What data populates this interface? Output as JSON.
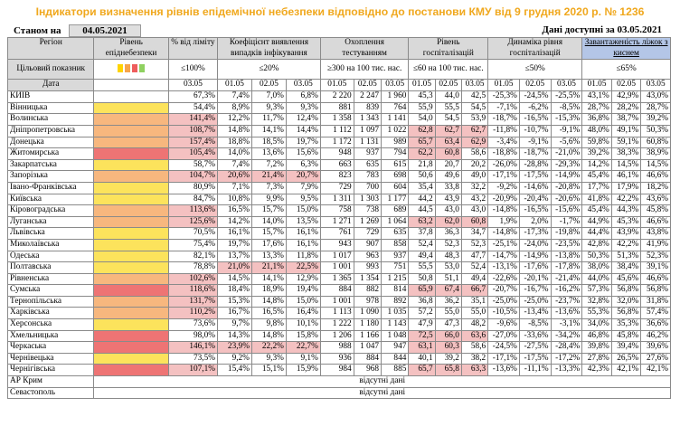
{
  "title": "Індикатори визначення рівнів епідемічної небезпеки відповідно до постанови КМУ від 9 грудня 2020 р. № 1236",
  "status_label": "Станом на",
  "status_date": "04.05.2021",
  "data_available": "Дані доступні за 03.05.2021",
  "headers": {
    "region": "Регіон",
    "level": "Рівень епіднебезпеки",
    "pct": "% від ліміту",
    "coef": "Коефіцієнт виявлення випадків інфікування",
    "tests": "Охоплення тестуванням",
    "hosp": "Рівень госпіталізацій",
    "dyn": "Динаміка рівня госпіталізацій",
    "oxy": "Завантаженість ліжок з киснем",
    "target": "Цільовий показник",
    "date_label": "Дата",
    "t_pct": "≤100%",
    "t_coef": "≤20%",
    "t_tests": "≥300 на 100 тис. нас.",
    "t_hosp": "≤60 на 100 тис. нас.",
    "t_dyn": "≤50%",
    "t_oxy": "≤65%",
    "d_pct": "03.05",
    "dates": [
      "01.05",
      "02.05",
      "03.05"
    ]
  },
  "colors": {
    "yellow": "#fce35c",
    "orange": "#f7b77e",
    "red": "#ee7474",
    "pink": "#f4c1c1",
    "swatches": [
      "#ffd400",
      "#f7a54b",
      "#ee5d5d",
      "#8fd160"
    ]
  },
  "absent_text": "відсутні дані",
  "rows": [
    {
      "name": "КИЇВ",
      "lvl": "w",
      "pct": "67,3%",
      "pb": "",
      "coef": [
        "7,4%",
        "7,0%",
        "6,8%"
      ],
      "tests": [
        "2 220",
        "2 247",
        "1 960"
      ],
      "hosp": [
        "45,3",
        "44,0",
        "42,5"
      ],
      "hp": "",
      "dyn": [
        "-25,3%",
        "-24,5%",
        "-25,5%"
      ],
      "oxy": [
        "43,1%",
        "42,9%",
        "43,0%"
      ]
    },
    {
      "name": "Вінницька",
      "lvl": "y",
      "pct": "54,4%",
      "pb": "",
      "coef": [
        "8,9%",
        "9,3%",
        "9,3%"
      ],
      "tests": [
        "881",
        "839",
        "764"
      ],
      "hosp": [
        "55,9",
        "55,5",
        "54,5"
      ],
      "hp": "",
      "dyn": [
        "-7,1%",
        "-6,2%",
        "-8,5%"
      ],
      "oxy": [
        "28,7%",
        "28,2%",
        "28,7%"
      ]
    },
    {
      "name": "Волинська",
      "lvl": "o",
      "pct": "141,4%",
      "pb": "r",
      "coef": [
        "12,2%",
        "11,7%",
        "12,4%"
      ],
      "tests": [
        "1 358",
        "1 343",
        "1 141"
      ],
      "hosp": [
        "54,0",
        "54,5",
        "53,9"
      ],
      "hp": "",
      "dyn": [
        "-18,7%",
        "-16,5%",
        "-15,3%"
      ],
      "oxy": [
        "36,8%",
        "38,7%",
        "39,2%"
      ]
    },
    {
      "name": "Дніпропетровська",
      "lvl": "o",
      "pct": "108,7%",
      "pb": "r",
      "coef": [
        "14,8%",
        "14,1%",
        "14,4%"
      ],
      "tests": [
        "1 112",
        "1 097",
        "1 022"
      ],
      "hosp": [
        "62,8",
        "62,7",
        "62,7"
      ],
      "hp": "p",
      "dyn": [
        "-11,8%",
        "-10,7%",
        "-9,1%"
      ],
      "oxy": [
        "48,0%",
        "49,1%",
        "50,3%"
      ]
    },
    {
      "name": "Донецька",
      "lvl": "o",
      "pct": "157,4%",
      "pb": "r",
      "coef": [
        "18,8%",
        "18,5%",
        "19,7%"
      ],
      "tests": [
        "1 172",
        "1 131",
        "989"
      ],
      "hosp": [
        "65,7",
        "63,4",
        "62,9"
      ],
      "hp": "p",
      "dyn": [
        "-3,4%",
        "-9,1%",
        "-5,6%"
      ],
      "oxy": [
        "59,8%",
        "59,1%",
        "60,8%"
      ]
    },
    {
      "name": "Житомирська",
      "lvl": "r",
      "pct": "105,4%",
      "pb": "r",
      "coef": [
        "14,0%",
        "13,6%",
        "15,6%"
      ],
      "tests": [
        "948",
        "937",
        "794"
      ],
      "hosp": [
        "62,2",
        "60,8",
        "58,6"
      ],
      "hp": "p2",
      "dyn": [
        "-18,8%",
        "-18,7%",
        "-21,0%"
      ],
      "oxy": [
        "39,2%",
        "38,3%",
        "38,9%"
      ]
    },
    {
      "name": "Закарпатська",
      "lvl": "y",
      "pct": "58,7%",
      "pb": "",
      "coef": [
        "7,4%",
        "7,2%",
        "6,3%"
      ],
      "tests": [
        "663",
        "635",
        "615"
      ],
      "hosp": [
        "21,8",
        "20,7",
        "20,2"
      ],
      "hp": "",
      "dyn": [
        "-26,0%",
        "-28,8%",
        "-29,3%"
      ],
      "oxy": [
        "14,2%",
        "14,5%",
        "14,5%"
      ]
    },
    {
      "name": "Запорізька",
      "lvl": "o",
      "pct": "104,7%",
      "pb": "r",
      "coef": [
        "20,6%",
        "21,4%",
        "20,7%"
      ],
      "cb": "p",
      "tests": [
        "823",
        "783",
        "698"
      ],
      "hosp": [
        "50,6",
        "49,6",
        "49,0"
      ],
      "hp": "",
      "dyn": [
        "-17,1%",
        "-17,5%",
        "-14,9%"
      ],
      "oxy": [
        "45,4%",
        "46,1%",
        "46,6%"
      ]
    },
    {
      "name": "Івано-Франківська",
      "lvl": "y",
      "pct": "80,9%",
      "pb": "",
      "coef": [
        "7,1%",
        "7,3%",
        "7,9%"
      ],
      "tests": [
        "729",
        "700",
        "604"
      ],
      "hosp": [
        "35,4",
        "33,8",
        "32,2"
      ],
      "hp": "",
      "dyn": [
        "-9,2%",
        "-14,6%",
        "-20,8%"
      ],
      "oxy": [
        "17,7%",
        "17,9%",
        "18,2%"
      ]
    },
    {
      "name": "Київська",
      "lvl": "y",
      "pct": "84,7%",
      "pb": "",
      "coef": [
        "10,8%",
        "9,9%",
        "9,5%"
      ],
      "tests": [
        "1 311",
        "1 303",
        "1 177"
      ],
      "hosp": [
        "44,2",
        "43,9",
        "43,2"
      ],
      "hp": "",
      "dyn": [
        "-20,9%",
        "-20,4%",
        "-20,6%"
      ],
      "oxy": [
        "41,8%",
        "42,2%",
        "43,6%"
      ]
    },
    {
      "name": "Кіровоградська",
      "lvl": "o",
      "pct": "113,6%",
      "pb": "r",
      "coef": [
        "16,5%",
        "15,7%",
        "15,0%"
      ],
      "tests": [
        "758",
        "738",
        "689"
      ],
      "hosp": [
        "44,5",
        "43,0",
        "43,0"
      ],
      "hp": "",
      "dyn": [
        "-14,8%",
        "-16,5%",
        "-15,6%"
      ],
      "oxy": [
        "45,4%",
        "44,3%",
        "45,8%"
      ]
    },
    {
      "name": "Луганська",
      "lvl": "o",
      "pct": "125,6%",
      "pb": "r",
      "coef": [
        "14,2%",
        "14,0%",
        "13,5%"
      ],
      "tests": [
        "1 271",
        "1 269",
        "1 064"
      ],
      "hosp": [
        "63,2",
        "62,0",
        "60,8"
      ],
      "hp": "p",
      "dyn": [
        "1,9%",
        "2,0%",
        "-1,7%"
      ],
      "oxy": [
        "44,9%",
        "45,3%",
        "46,6%"
      ]
    },
    {
      "name": "Львівська",
      "lvl": "y",
      "pct": "70,5%",
      "pb": "",
      "coef": [
        "16,1%",
        "15,7%",
        "16,1%"
      ],
      "tests": [
        "761",
        "729",
        "635"
      ],
      "hosp": [
        "37,8",
        "36,3",
        "34,7"
      ],
      "hp": "",
      "dyn": [
        "-14,8%",
        "-17,3%",
        "-19,8%"
      ],
      "oxy": [
        "44,4%",
        "43,9%",
        "43,8%"
      ]
    },
    {
      "name": "Миколаївська",
      "lvl": "y",
      "pct": "75,4%",
      "pb": "",
      "coef": [
        "19,7%",
        "17,6%",
        "16,1%"
      ],
      "tests": [
        "943",
        "907",
        "858"
      ],
      "hosp": [
        "52,4",
        "52,3",
        "52,3"
      ],
      "hp": "",
      "dyn": [
        "-25,1%",
        "-24,0%",
        "-23,5%"
      ],
      "oxy": [
        "42,8%",
        "42,2%",
        "41,9%"
      ]
    },
    {
      "name": "Одеська",
      "lvl": "y",
      "pct": "82,1%",
      "pb": "",
      "coef": [
        "13,7%",
        "13,3%",
        "11,8%"
      ],
      "tests": [
        "1 017",
        "963",
        "937"
      ],
      "hosp": [
        "49,4",
        "48,3",
        "47,7"
      ],
      "hp": "",
      "dyn": [
        "-14,7%",
        "-14,9%",
        "-13,8%"
      ],
      "oxy": [
        "50,3%",
        "51,3%",
        "52,3%"
      ]
    },
    {
      "name": "Полтавська",
      "lvl": "y",
      "pct": "78,8%",
      "pb": "",
      "coef": [
        "21,0%",
        "21,1%",
        "22,5%"
      ],
      "cb": "p",
      "tests": [
        "1 001",
        "993",
        "751"
      ],
      "hosp": [
        "55,5",
        "53,0",
        "52,4"
      ],
      "hp": "",
      "dyn": [
        "-13,1%",
        "-17,6%",
        "-17,8%"
      ],
      "oxy": [
        "38,0%",
        "38,4%",
        "39,1%"
      ]
    },
    {
      "name": "Рівненська",
      "lvl": "o",
      "pct": "102,6%",
      "pb": "r",
      "coef": [
        "14,5%",
        "14,1%",
        "12,9%"
      ],
      "tests": [
        "1 365",
        "1 354",
        "1 215"
      ],
      "hosp": [
        "50,8",
        "51,1",
        "49,4"
      ],
      "hp": "",
      "dyn": [
        "-22,6%",
        "-20,1%",
        "-21,4%"
      ],
      "oxy": [
        "44,0%",
        "45,6%",
        "46,6%"
      ]
    },
    {
      "name": "Сумська",
      "lvl": "r",
      "pct": "118,6%",
      "pb": "r",
      "coef": [
        "18,4%",
        "18,9%",
        "19,4%"
      ],
      "tests": [
        "884",
        "882",
        "814"
      ],
      "hosp": [
        "65,9",
        "67,4",
        "66,7"
      ],
      "hp": "p",
      "dyn": [
        "-20,7%",
        "-16,7%",
        "-16,2%"
      ],
      "oxy": [
        "57,3%",
        "56,8%",
        "56,8%"
      ]
    },
    {
      "name": "Тернопільська",
      "lvl": "o",
      "pct": "131,7%",
      "pb": "r",
      "coef": [
        "15,3%",
        "14,8%",
        "15,0%"
      ],
      "tests": [
        "1 001",
        "978",
        "892"
      ],
      "hosp": [
        "36,8",
        "36,2",
        "35,1"
      ],
      "hp": "",
      "dyn": [
        "-25,0%",
        "-25,0%",
        "-23,7%"
      ],
      "oxy": [
        "32,8%",
        "32,0%",
        "31,8%"
      ]
    },
    {
      "name": "Харківська",
      "lvl": "o",
      "pct": "110,2%",
      "pb": "r",
      "coef": [
        "16,7%",
        "16,5%",
        "16,4%"
      ],
      "tests": [
        "1 113",
        "1 090",
        "1 035"
      ],
      "hosp": [
        "57,2",
        "55,0",
        "55,0"
      ],
      "hp": "",
      "dyn": [
        "-10,5%",
        "-13,4%",
        "-13,6%"
      ],
      "oxy": [
        "55,3%",
        "56,8%",
        "57,4%"
      ]
    },
    {
      "name": "Херсонська",
      "lvl": "y",
      "pct": "73,6%",
      "pb": "",
      "coef": [
        "9,7%",
        "9,8%",
        "10,1%"
      ],
      "tests": [
        "1 222",
        "1 180",
        "1 143"
      ],
      "hosp": [
        "47,9",
        "47,3",
        "48,2"
      ],
      "hp": "",
      "dyn": [
        "-9,6%",
        "-8,5%",
        "-3,1%"
      ],
      "oxy": [
        "34,0%",
        "35,3%",
        "36,6%"
      ]
    },
    {
      "name": "Хмельницька",
      "lvl": "r",
      "pct": "98,0%",
      "pb": "",
      "coef": [
        "14,3%",
        "14,8%",
        "15,8%"
      ],
      "tests": [
        "1 206",
        "1 166",
        "1 048"
      ],
      "hosp": [
        "72,5",
        "66,0",
        "63,6"
      ],
      "hp": "p",
      "dyn": [
        "-27,0%",
        "-33,6%",
        "-34,2%"
      ],
      "oxy": [
        "46,8%",
        "45,8%",
        "46,2%"
      ]
    },
    {
      "name": "Черкаська",
      "lvl": "r",
      "pct": "146,1%",
      "pb": "r",
      "coef": [
        "23,9%",
        "22,2%",
        "22,7%"
      ],
      "cb": "p",
      "tests": [
        "988",
        "1 047",
        "947"
      ],
      "hosp": [
        "63,1",
        "60,3",
        "58,6"
      ],
      "hp": "p2",
      "dyn": [
        "-24,5%",
        "-27,5%",
        "-28,4%"
      ],
      "oxy": [
        "39,8%",
        "39,4%",
        "39,6%"
      ]
    },
    {
      "name": "Чернівецька",
      "lvl": "y",
      "pct": "73,5%",
      "pb": "",
      "coef": [
        "9,2%",
        "9,3%",
        "9,1%"
      ],
      "tests": [
        "936",
        "884",
        "844"
      ],
      "hosp": [
        "40,1",
        "39,2",
        "38,2"
      ],
      "hp": "",
      "dyn": [
        "-17,1%",
        "-17,5%",
        "-17,2%"
      ],
      "oxy": [
        "27,8%",
        "26,5%",
        "27,6%"
      ]
    },
    {
      "name": "Чернігівська",
      "lvl": "r",
      "pct": "107,1%",
      "pb": "r",
      "coef": [
        "15,4%",
        "15,1%",
        "15,9%"
      ],
      "tests": [
        "984",
        "968",
        "885"
      ],
      "hosp": [
        "65,7",
        "65,8",
        "63,3"
      ],
      "hp": "p",
      "dyn": [
        "-13,6%",
        "-11,1%",
        "-13,3%"
      ],
      "oxy": [
        "42,3%",
        "42,1%",
        "42,1%"
      ]
    }
  ],
  "absent_rows": [
    "АР Крим",
    "Севастополь"
  ]
}
